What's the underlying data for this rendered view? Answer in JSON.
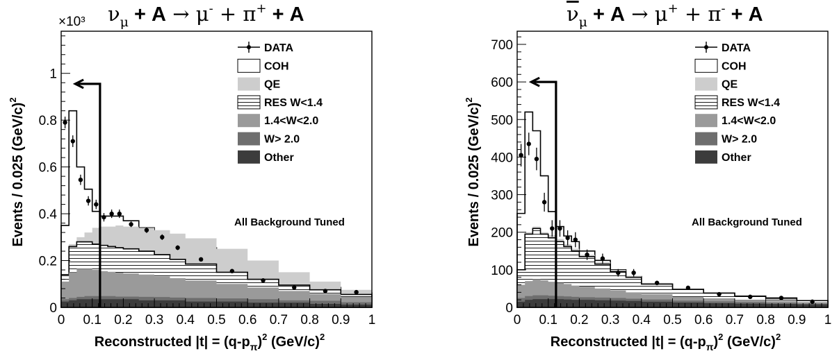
{
  "chart_data": [
    {
      "type": "histogram",
      "title": "ν_μ + A → μ⁻ + π⁺ + A",
      "title_parts": {
        "nu": "ν",
        "nu_sub": "μ",
        "mid": " + A → μ",
        "mu_sup": "-",
        "plus1": " + π",
        "pi_sup": "+",
        "tail": " + A"
      },
      "xlabel": "Reconstructed |t| = (q-p_π)² (GeV/c)²",
      "ylabel": "Events / 0.025 (GeV/c)²",
      "y_multiplier": "×10³",
      "xlim": [
        0,
        1
      ],
      "ylim": [
        0,
        1.18
      ],
      "x_ticks": [
        "0",
        "0.1",
        "0.2",
        "0.3",
        "0.4",
        "0.5",
        "0.6",
        "0.7",
        "0.8",
        "0.9",
        "1"
      ],
      "y_ticks": [
        {
          "v": 0,
          "l": "0"
        },
        {
          "v": 0.2,
          "l": "0.2"
        },
        {
          "v": 0.4,
          "l": "0.4"
        },
        {
          "v": 0.6,
          "l": "0.6"
        },
        {
          "v": 0.8,
          "l": "0.8"
        },
        {
          "v": 1.0,
          "l": "1"
        }
      ],
      "annotation": "All Background Tuned",
      "cut_arrow": {
        "x": 0.125,
        "y_top": 0.955,
        "x_head": 0.045
      },
      "bin_edges": [
        0,
        0.025,
        0.05,
        0.075,
        0.1,
        0.125,
        0.15,
        0.175,
        0.2,
        0.25,
        0.3,
        0.35,
        0.4,
        0.5,
        0.6,
        0.7,
        0.8,
        0.9,
        1.0
      ],
      "series": [
        {
          "name": "Other",
          "stack": [
            0.025,
            0.03,
            0.035,
            0.035,
            0.035,
            0.035,
            0.035,
            0.035,
            0.035,
            0.03,
            0.03,
            0.03,
            0.025,
            0.025,
            0.02,
            0.02,
            0.015,
            0.012
          ],
          "color": "#3c3c3c"
        },
        {
          "name": "W> 2.0",
          "stack": [
            0.035,
            0.04,
            0.045,
            0.048,
            0.048,
            0.048,
            0.048,
            0.046,
            0.046,
            0.045,
            0.044,
            0.042,
            0.04,
            0.038,
            0.035,
            0.03,
            0.028,
            0.022
          ],
          "color": "#6e6e6e"
        },
        {
          "name": "1.4<W<2.0",
          "stack": [
            0.11,
            0.15,
            0.165,
            0.165,
            0.16,
            0.155,
            0.152,
            0.148,
            0.145,
            0.14,
            0.132,
            0.125,
            0.115,
            0.1,
            0.085,
            0.07,
            0.057,
            0.045
          ],
          "color": "#9a9a9a"
        },
        {
          "name": "RES W<1.4",
          "stack": [
            0.14,
            0.26,
            0.28,
            0.28,
            0.27,
            0.265,
            0.26,
            0.255,
            0.25,
            0.24,
            0.225,
            0.205,
            0.185,
            0.15,
            0.12,
            0.095,
            0.075,
            0.055
          ],
          "color": "hatch"
        },
        {
          "name": "QE",
          "stack": [
            0.14,
            0.27,
            0.3,
            0.32,
            0.34,
            0.345,
            0.345,
            0.35,
            0.345,
            0.34,
            0.33,
            0.315,
            0.295,
            0.25,
            0.2,
            0.15,
            0.11,
            0.075
          ],
          "color": "#cdcdcd"
        },
        {
          "name": "COH",
          "stack": [
            0.35,
            0.84,
            0.6,
            0.505,
            0.41,
            0.39,
            0.39,
            0.39,
            0.37,
            0.34,
            0.31,
            0.28,
            0.255,
            0.195,
            0.145,
            0.105,
            0.085,
            0.062
          ],
          "color": "#ffffff"
        }
      ],
      "data": {
        "name": "DATA",
        "x": [
          0.0125,
          0.0375,
          0.0625,
          0.0875,
          0.1125,
          0.1375,
          0.1625,
          0.1875,
          0.225,
          0.275,
          0.325,
          0.375,
          0.45,
          0.55,
          0.65,
          0.75,
          0.85,
          0.95
        ],
        "y": [
          0.79,
          0.71,
          0.545,
          0.455,
          0.44,
          0.385,
          0.4,
          0.4,
          0.355,
          0.33,
          0.3,
          0.255,
          0.205,
          0.155,
          0.115,
          0.085,
          0.07,
          0.065
        ],
        "err": [
          0.025,
          0.025,
          0.022,
          0.02,
          0.02,
          0.018,
          0.018,
          0.018,
          0.012,
          0.012,
          0.012,
          0.01,
          0.008,
          0.007,
          0.006,
          0.005,
          0.005,
          0.005
        ]
      },
      "legend": [
        "DATA",
        "COH",
        "QE",
        "RES W<1.4",
        "1.4<W<2.0",
        "W> 2.0",
        "Other"
      ]
    },
    {
      "type": "histogram",
      "title": "ν̄_μ + A → μ⁺ + π⁻ + A",
      "title_parts": {
        "nu": "ν",
        "nu_sub": "μ",
        "mid": " + A → μ",
        "mu_sup": "+",
        "plus1": " + π",
        "pi_sup": "-",
        "tail": " + A"
      },
      "xlabel": "Reconstructed |t| = (q-p_π)² (GeV/c)²",
      "ylabel": "Events / 0.025 (GeV/c)²",
      "y_multiplier": "",
      "xlim": [
        0,
        1
      ],
      "ylim": [
        0,
        735
      ],
      "x_ticks": [
        "0",
        "0.1",
        "0.2",
        "0.3",
        "0.4",
        "0.5",
        "0.6",
        "0.7",
        "0.8",
        "0.9",
        "1"
      ],
      "y_ticks": [
        {
          "v": 0,
          "l": "0"
        },
        {
          "v": 100,
          "l": "100"
        },
        {
          "v": 200,
          "l": "200"
        },
        {
          "v": 300,
          "l": "300"
        },
        {
          "v": 400,
          "l": "400"
        },
        {
          "v": 500,
          "l": "500"
        },
        {
          "v": 600,
          "l": "600"
        },
        {
          "v": 700,
          "l": "700"
        }
      ],
      "annotation": "All Background Tuned",
      "cut_arrow": {
        "x": 0.125,
        "y_top": 600,
        "x_head": 0.045
      },
      "bin_edges": [
        0,
        0.025,
        0.05,
        0.075,
        0.1,
        0.125,
        0.15,
        0.175,
        0.2,
        0.25,
        0.3,
        0.35,
        0.4,
        0.5,
        0.6,
        0.7,
        0.8,
        0.9,
        1.0
      ],
      "series": [
        {
          "name": "Other",
          "stack": [
            15,
            20,
            22,
            22,
            22,
            22,
            21,
            20,
            20,
            19,
            18,
            17,
            15,
            13,
            11,
            10,
            9,
            8
          ],
          "color": "#3c3c3c"
        },
        {
          "name": "W> 2.0",
          "stack": [
            25,
            30,
            32,
            32,
            31,
            30,
            29,
            28,
            27,
            26,
            25,
            23,
            21,
            18,
            16,
            14,
            12,
            10
          ],
          "color": "#6e6e6e"
        },
        {
          "name": "1.4<W<2.0",
          "stack": [
            60,
            70,
            75,
            72,
            68,
            65,
            62,
            58,
            55,
            50,
            45,
            40,
            35,
            28,
            24,
            20,
            17,
            14
          ],
          "color": "#9a9a9a"
        },
        {
          "name": "RES W<1.4",
          "stack": [
            100,
            195,
            210,
            195,
            185,
            175,
            162,
            150,
            135,
            115,
            95,
            80,
            62,
            48,
            38,
            30,
            24,
            18
          ],
          "color": "hatch"
        },
        {
          "name": "QE",
          "stack": [
            100,
            200,
            215,
            200,
            192,
            182,
            168,
            156,
            140,
            120,
            100,
            84,
            65,
            50,
            40,
            31,
            25,
            18
          ],
          "color": "#cdcdcd"
        },
        {
          "name": "COH",
          "stack": [
            250,
            520,
            470,
            350,
            255,
            215,
            190,
            175,
            150,
            125,
            100,
            82,
            62,
            48,
            38,
            30,
            25,
            18
          ],
          "color": "#ffffff"
        }
      ],
      "data": {
        "name": "DATA",
        "x": [
          0.0125,
          0.0375,
          0.0625,
          0.0875,
          0.1125,
          0.1375,
          0.1625,
          0.1875,
          0.225,
          0.275,
          0.325,
          0.375,
          0.45,
          0.55,
          0.65,
          0.75,
          0.85,
          0.95
        ],
        "y": [
          405,
          435,
          395,
          280,
          210,
          210,
          185,
          180,
          140,
          130,
          92,
          92,
          65,
          52,
          35,
          28,
          25,
          15
        ],
        "err": [
          30,
          30,
          30,
          25,
          22,
          22,
          20,
          20,
          14,
          13,
          10,
          10,
          6,
          5,
          4,
          4,
          3,
          3
        ]
      },
      "legend": [
        "DATA",
        "COH",
        "QE",
        "RES W<1.4",
        "1.4<W<2.0",
        "W> 2.0",
        "Other"
      ]
    }
  ]
}
